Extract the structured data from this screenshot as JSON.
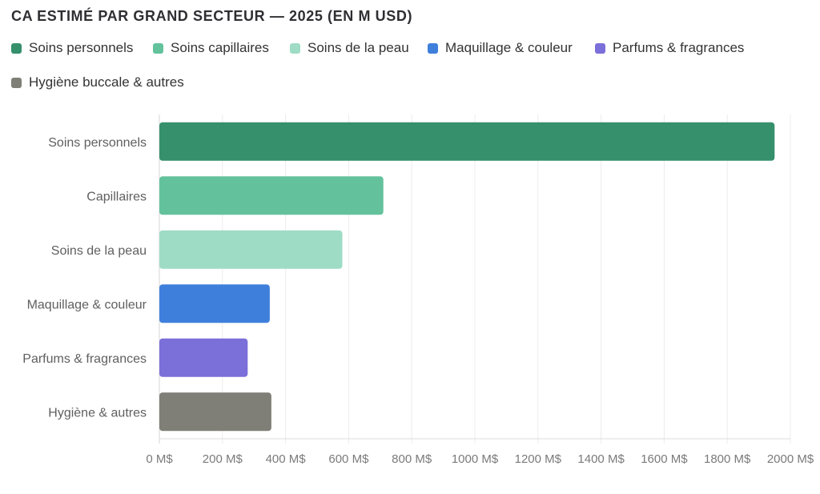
{
  "title": "CA ESTIMÉ PAR GRAND SECTEUR — 2025 (EN M USD)",
  "legend": [
    {
      "label": "Soins personnels",
      "color": "#35906b"
    },
    {
      "label": "Soins capillaires",
      "color": "#63c29c"
    },
    {
      "label": "Soins de la peau",
      "color": "#9fdcc5"
    },
    {
      "label": "Maquillage & couleur",
      "color": "#3f7fdc"
    },
    {
      "label": "Parfums & fragrances",
      "color": "#7b6fd9"
    },
    {
      "label": "Hygiène buccale & autres",
      "color": "#7f7f77"
    }
  ],
  "chart_data": {
    "type": "bar",
    "orientation": "horizontal",
    "title": "CA ESTIMÉ PAR GRAND SECTEUR — 2025 (EN M USD)",
    "xlabel": "",
    "ylabel": "",
    "categories": [
      "Soins personnels",
      "Capillaires",
      "Soins de la peau",
      "Maquillage & couleur",
      "Parfums & fragrances",
      "Hygiène & autres"
    ],
    "values": [
      1950,
      710,
      580,
      350,
      280,
      355
    ],
    "colors": [
      "#35906b",
      "#63c29c",
      "#9fdcc5",
      "#3f7fdc",
      "#7b6fd9",
      "#7f7f77"
    ],
    "xlim": [
      0,
      2000
    ],
    "xticks": [
      0,
      200,
      400,
      600,
      800,
      1000,
      1200,
      1400,
      1600,
      1800,
      2000
    ],
    "xtick_labels": [
      "0 M$",
      "200 M$",
      "400 M$",
      "600 M$",
      "800 M$",
      "1000 M$",
      "1200 M$",
      "1400 M$",
      "1600 M$",
      "1800 M$",
      "2000 M$"
    ],
    "grid": true,
    "legend_position": "top-left"
  }
}
